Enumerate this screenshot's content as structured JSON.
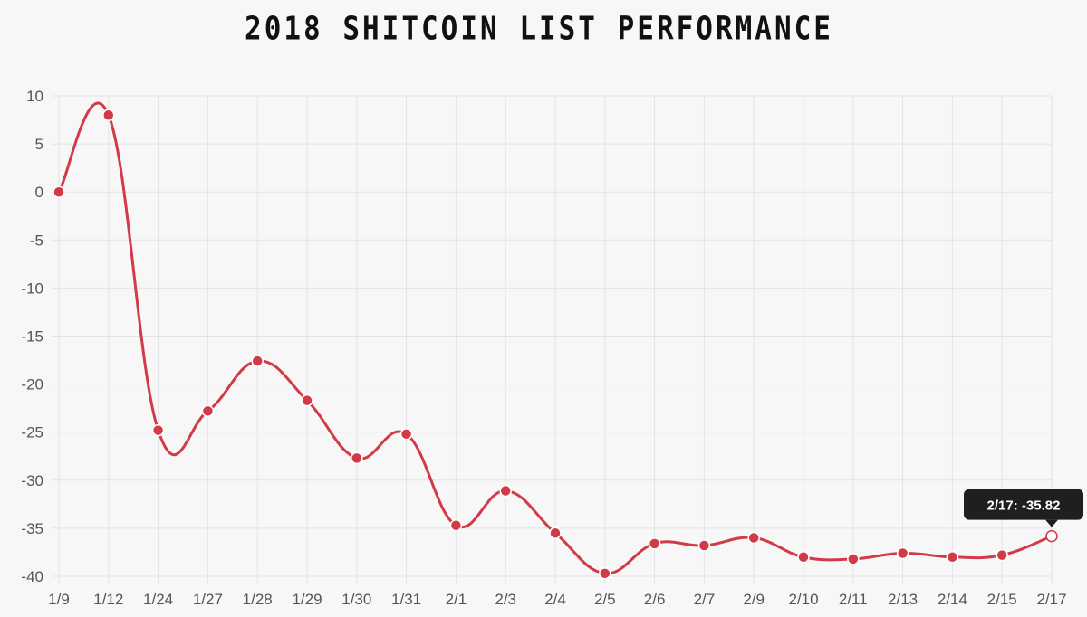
{
  "chart_data": {
    "type": "line",
    "title": "2018 SHITCOIN LIST PERFORMANCE",
    "xlabel": "",
    "ylabel": "",
    "categories": [
      "1/9",
      "1/12",
      "1/24",
      "1/27",
      "1/28",
      "1/29",
      "1/30",
      "1/31",
      "2/1",
      "2/3",
      "2/4",
      "2/5",
      "2/6",
      "2/7",
      "2/9",
      "2/10",
      "2/11",
      "2/13",
      "2/14",
      "2/15",
      "2/17"
    ],
    "series": [
      {
        "values": [
          0,
          8.0,
          -24.8,
          -22.8,
          -17.6,
          -21.7,
          -27.7,
          -25.2,
          -34.7,
          -31.1,
          -35.5,
          -39.7,
          -36.6,
          -36.8,
          -36.0,
          -38.0,
          -38.2,
          -37.6,
          -38.0,
          -37.8,
          -35.82
        ],
        "color": "#d13b47"
      }
    ],
    "ylim": [
      -40,
      10
    ],
    "yticks": [
      10,
      5,
      0,
      -5,
      -10,
      -15,
      -20,
      -25,
      -30,
      -35,
      -40
    ],
    "grid": true,
    "tooltip": {
      "category": "2/17",
      "text": "2/17: -35.82"
    }
  }
}
